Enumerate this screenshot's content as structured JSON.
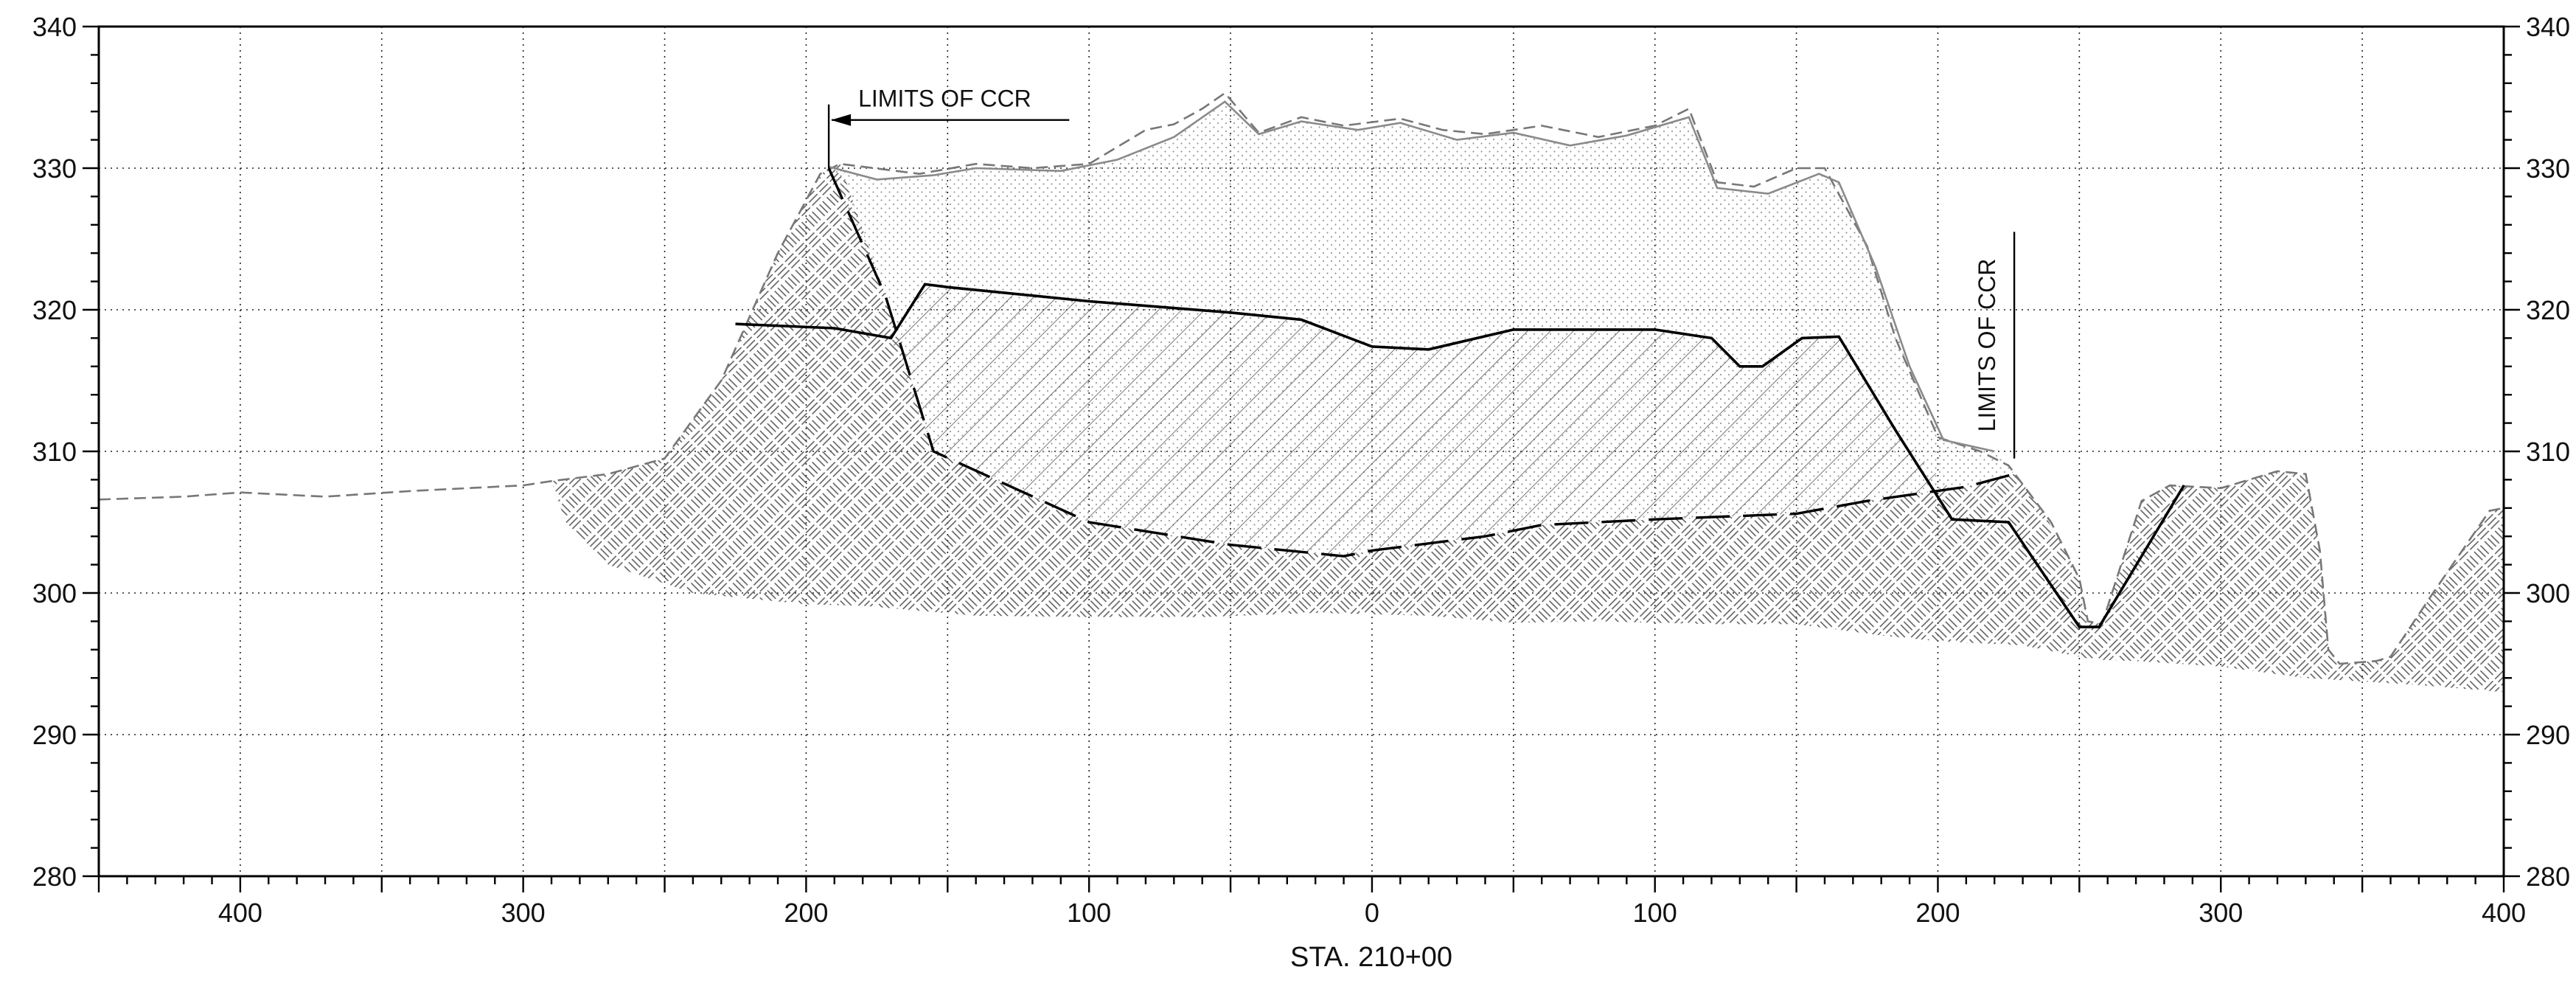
{
  "chart_data": {
    "type": "cross-section",
    "x_label": "STA. 210+00",
    "x_range": [
      -450,
      400
    ],
    "x_ticks": [
      -400,
      -300,
      -200,
      -100,
      0,
      100,
      200,
      300,
      400
    ],
    "x_tick_labels": [
      "400",
      "300",
      "200",
      "100",
      "0",
      "100",
      "200",
      "300",
      "400"
    ],
    "y_range": [
      280,
      340
    ],
    "y_ticks": [
      280,
      290,
      300,
      310,
      320,
      330,
      340
    ],
    "y_tick_labels": [
      "280",
      "290",
      "300",
      "310",
      "320",
      "330",
      "340"
    ],
    "grid": true,
    "annotations": [
      {
        "name": "limits-of-ccr-left",
        "text": "LIMITS OF CCR",
        "x": -192,
        "y_range": [
          330,
          334.5
        ]
      },
      {
        "name": "limits-of-ccr-right",
        "text": "LIMITS OF CCR",
        "x": 227,
        "y_range": [
          309.5,
          325.5
        ]
      }
    ],
    "series": [
      {
        "key": "existing_ground",
        "style": "dashed-gray",
        "points": [
          [
            -450,
            306.6
          ],
          [
            -420,
            306.8
          ],
          [
            -400,
            307.1
          ],
          [
            -370,
            306.8
          ],
          [
            -340,
            307.2
          ],
          [
            -300,
            307.6
          ],
          [
            -290,
            307.9
          ],
          [
            -270,
            308.4
          ],
          [
            -250,
            309.5
          ],
          [
            -230,
            315
          ],
          [
            -210,
            324
          ],
          [
            -195,
            329.6
          ],
          [
            -188,
            330.3
          ],
          [
            -160,
            329.6
          ],
          [
            -140,
            330.3
          ],
          [
            -120,
            330
          ],
          [
            -100,
            330.3
          ],
          [
            -80,
            332.7
          ],
          [
            -70,
            333.1
          ],
          [
            -60,
            334.2
          ],
          [
            -52,
            335.3
          ],
          [
            -40,
            332.5
          ],
          [
            -25,
            333.6
          ],
          [
            -10,
            333
          ],
          [
            10,
            333.5
          ],
          [
            25,
            332.7
          ],
          [
            40,
            332.4
          ],
          [
            60,
            333
          ],
          [
            80,
            332.2
          ],
          [
            100,
            333
          ],
          [
            112,
            334.2
          ],
          [
            122,
            329
          ],
          [
            135,
            328.7
          ],
          [
            150,
            330
          ],
          [
            160,
            330
          ],
          [
            175,
            324.5
          ],
          [
            185,
            318
          ],
          [
            200,
            311
          ],
          [
            215,
            310
          ],
          [
            225,
            309
          ],
          [
            240,
            305
          ],
          [
            250,
            301
          ],
          [
            253,
            298
          ],
          [
            258,
            297.8
          ],
          [
            272,
            306.5
          ],
          [
            282,
            307.6
          ],
          [
            300,
            307.4
          ],
          [
            320,
            308.6
          ],
          [
            330,
            308.4
          ],
          [
            335,
            303
          ],
          [
            338,
            296
          ],
          [
            342,
            295
          ],
          [
            355,
            295.2
          ],
          [
            360,
            295.5
          ],
          [
            375,
            300
          ],
          [
            395,
            305.8
          ],
          [
            400,
            306
          ]
        ]
      },
      {
        "key": "ccr_top_surface",
        "style": "gray",
        "points": [
          [
            -192,
            330.1
          ],
          [
            -175,
            329.2
          ],
          [
            -155,
            329.5
          ],
          [
            -140,
            330
          ],
          [
            -110,
            329.8
          ],
          [
            -90,
            330.6
          ],
          [
            -70,
            332.2
          ],
          [
            -52,
            334.7
          ],
          [
            -40,
            332.4
          ],
          [
            -25,
            333.3
          ],
          [
            -5,
            332.7
          ],
          [
            10,
            333.2
          ],
          [
            30,
            332
          ],
          [
            50,
            332.5
          ],
          [
            70,
            331.6
          ],
          [
            90,
            332.3
          ],
          [
            112,
            333.6
          ],
          [
            122,
            328.6
          ],
          [
            140,
            328.2
          ],
          [
            158,
            329.6
          ],
          [
            165,
            329
          ],
          [
            178,
            323
          ],
          [
            190,
            316
          ],
          [
            202,
            310.8
          ],
          [
            220,
            310
          ]
        ]
      },
      {
        "key": "ccr_bottom",
        "style": "long-dash",
        "points": [
          [
            -192,
            330
          ],
          [
            -172,
            321
          ],
          [
            -155,
            310
          ],
          [
            -100,
            305
          ],
          [
            -50,
            303.4
          ],
          [
            -10,
            302.6
          ],
          [
            0,
            303
          ],
          [
            20,
            303.5
          ],
          [
            40,
            304
          ],
          [
            60,
            304.8
          ],
          [
            100,
            305.2
          ],
          [
            150,
            305.6
          ],
          [
            175,
            306.5
          ],
          [
            210,
            307.5
          ],
          [
            227,
            308.4
          ]
        ]
      },
      {
        "key": "water_surface",
        "style": "solid",
        "points": [
          [
            -225,
            319
          ],
          [
            -190,
            318.7
          ],
          [
            -170,
            318
          ],
          [
            -158,
            321.8
          ],
          [
            -150,
            321.6
          ],
          [
            -100,
            320.6
          ],
          [
            -50,
            319.8
          ],
          [
            -25,
            319.3
          ],
          [
            0,
            317.4
          ],
          [
            20,
            317.2
          ],
          [
            50,
            318.6
          ],
          [
            80,
            318.6
          ],
          [
            100,
            318.6
          ],
          [
            120,
            318
          ],
          [
            130,
            316
          ],
          [
            138,
            316
          ],
          [
            152,
            318
          ],
          [
            165,
            318.1
          ],
          [
            185,
            311.5
          ],
          [
            205,
            305.2
          ],
          [
            225,
            305
          ],
          [
            250,
            297.6
          ],
          [
            257,
            297.6
          ],
          [
            287,
            307.6
          ]
        ]
      },
      {
        "key": "foundation_soil",
        "style": "basketweave-hatch",
        "points": [
          [
            -290,
            307.9
          ],
          [
            -270,
            308.4
          ],
          [
            -250,
            309.5
          ],
          [
            -230,
            315
          ],
          [
            -210,
            324
          ],
          [
            -195,
            329.6
          ],
          [
            -188,
            330.3
          ],
          [
            -172,
            321
          ],
          [
            -155,
            310
          ],
          [
            -100,
            305
          ],
          [
            -50,
            303.4
          ],
          [
            -10,
            302.6
          ],
          [
            0,
            303
          ],
          [
            20,
            303.5
          ],
          [
            40,
            304
          ],
          [
            60,
            304.8
          ],
          [
            100,
            305.2
          ],
          [
            150,
            305.6
          ],
          [
            175,
            306.5
          ],
          [
            210,
            307.5
          ],
          [
            227,
            308.4
          ],
          [
            235,
            306.5
          ],
          [
            245,
            303
          ],
          [
            250,
            301
          ],
          [
            253,
            298
          ],
          [
            258,
            297.8
          ],
          [
            272,
            306.5
          ],
          [
            282,
            307.6
          ],
          [
            300,
            307.4
          ],
          [
            320,
            308.6
          ],
          [
            330,
            308.4
          ],
          [
            335,
            303
          ],
          [
            338,
            296
          ],
          [
            342,
            295
          ],
          [
            355,
            295.2
          ],
          [
            360,
            295.5
          ],
          [
            375,
            300
          ],
          [
            395,
            305.8
          ],
          [
            400,
            306
          ],
          [
            400,
            293
          ],
          [
            370,
            293.5
          ],
          [
            330,
            294
          ],
          [
            300,
            294.8
          ],
          [
            270,
            295.2
          ],
          [
            255,
            295.3
          ],
          [
            230,
            296.3
          ],
          [
            200,
            296.6
          ],
          [
            180,
            297
          ],
          [
            150,
            297.8
          ],
          [
            120,
            297.8
          ],
          [
            80,
            298
          ],
          [
            50,
            297.9
          ],
          [
            20,
            298.4
          ],
          [
            -20,
            298.6
          ],
          [
            -60,
            298.3
          ],
          [
            -100,
            298.3
          ],
          [
            -140,
            298.4
          ],
          [
            -180,
            299.1
          ],
          [
            -200,
            299.2
          ],
          [
            -240,
            300
          ],
          [
            -270,
            302
          ],
          [
            -285,
            305
          ]
        ]
      },
      {
        "key": "ccr_fill",
        "style": "stipple",
        "points": [
          [
            -192,
            330.1
          ],
          [
            -175,
            329.2
          ],
          [
            -155,
            329.5
          ],
          [
            -140,
            330
          ],
          [
            -110,
            329.8
          ],
          [
            -90,
            330.6
          ],
          [
            -70,
            332.2
          ],
          [
            -52,
            334.7
          ],
          [
            -40,
            332.4
          ],
          [
            -25,
            333.3
          ],
          [
            -5,
            332.7
          ],
          [
            10,
            333.2
          ],
          [
            30,
            332
          ],
          [
            50,
            332.5
          ],
          [
            70,
            331.6
          ],
          [
            90,
            332.3
          ],
          [
            112,
            333.6
          ],
          [
            122,
            328.6
          ],
          [
            140,
            328.2
          ],
          [
            158,
            329.6
          ],
          [
            165,
            329
          ],
          [
            178,
            323
          ],
          [
            190,
            316
          ],
          [
            202,
            310.8
          ],
          [
            220,
            310
          ],
          [
            227,
            308.4
          ],
          [
            210,
            307.5
          ],
          [
            175,
            306.5
          ],
          [
            150,
            305.6
          ],
          [
            100,
            305.2
          ],
          [
            60,
            304.8
          ],
          [
            40,
            304
          ],
          [
            20,
            303.5
          ],
          [
            0,
            303
          ],
          [
            -10,
            302.6
          ],
          [
            -50,
            303.4
          ],
          [
            -100,
            305
          ],
          [
            -155,
            310
          ],
          [
            -172,
            321
          ]
        ]
      },
      {
        "key": "saturated_ccr",
        "style": "diagonal-hatch",
        "points": [
          [
            -170,
            318
          ],
          [
            -158,
            321.8
          ],
          [
            -150,
            321.6
          ],
          [
            -100,
            320.6
          ],
          [
            -50,
            319.8
          ],
          [
            -25,
            319.3
          ],
          [
            0,
            317.4
          ],
          [
            20,
            317.2
          ],
          [
            50,
            318.6
          ],
          [
            80,
            318.6
          ],
          [
            100,
            318.6
          ],
          [
            120,
            318
          ],
          [
            130,
            316
          ],
          [
            138,
            316
          ],
          [
            152,
            318
          ],
          [
            165,
            318.1
          ],
          [
            185,
            311.5
          ],
          [
            205,
            307.2
          ],
          [
            175,
            306.5
          ],
          [
            150,
            305.6
          ],
          [
            100,
            305.2
          ],
          [
            60,
            304.8
          ],
          [
            40,
            304
          ],
          [
            20,
            303.5
          ],
          [
            0,
            303
          ],
          [
            -10,
            302.6
          ],
          [
            -50,
            303.4
          ],
          [
            -100,
            305
          ],
          [
            -155,
            310
          ]
        ]
      }
    ]
  }
}
